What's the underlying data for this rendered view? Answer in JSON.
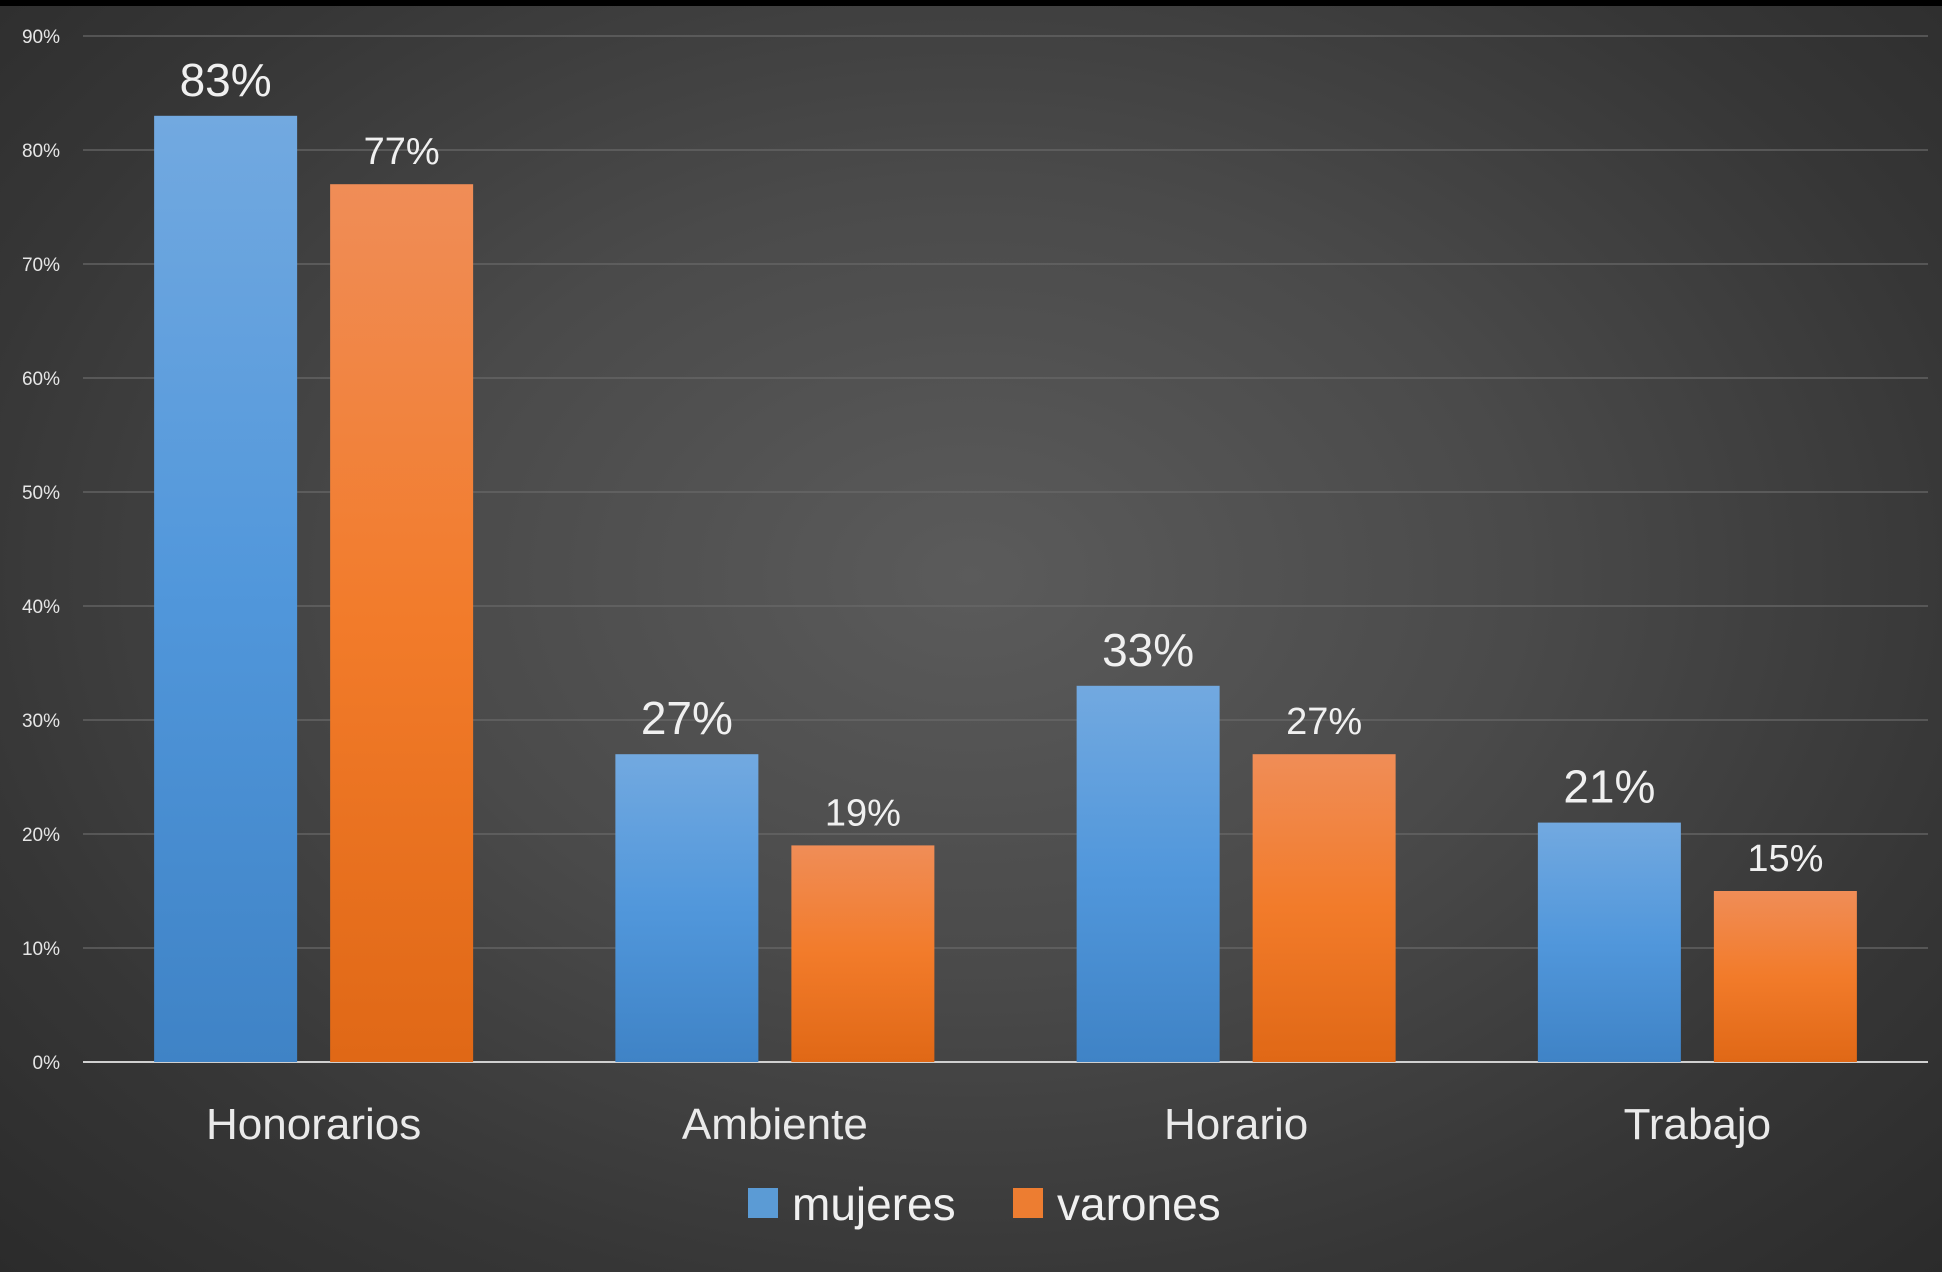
{
  "chart_data": {
    "type": "bar",
    "categories": [
      "Honorarios",
      "Ambiente",
      "Horario",
      "Trabajo"
    ],
    "series": [
      {
        "name": "mujeres",
        "values": [
          83,
          27,
          33,
          21
        ],
        "labels": [
          "83%",
          "27%",
          "33%",
          "21%"
        ],
        "color": "#5b9bd5"
      },
      {
        "name": "varones",
        "values": [
          77,
          19,
          27,
          15
        ],
        "labels": [
          "77%",
          "19%",
          "27%",
          "15%"
        ],
        "color": "#ed7d31"
      }
    ],
    "ylim": [
      0,
      90
    ],
    "yticks": [
      0,
      10,
      20,
      30,
      40,
      50,
      60,
      70,
      80,
      90
    ],
    "ytick_labels": [
      "0%",
      "10%",
      "20%",
      "30%",
      "40%",
      "50%",
      "60%",
      "70%",
      "80%",
      "90%"
    ],
    "xlabel": "",
    "ylabel": "",
    "title": "",
    "grid": true,
    "legend_position": "bottom-center"
  }
}
